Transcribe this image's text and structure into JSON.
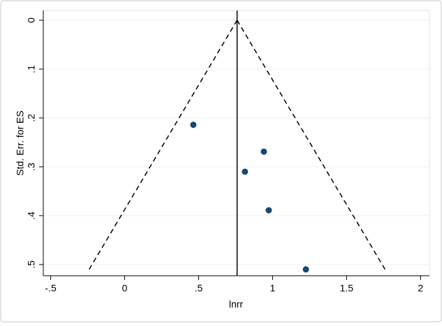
{
  "chart_data": {
    "type": "funnel",
    "x_label": "lnrr",
    "y_label": "Std. Err. for ES",
    "xlim": [
      -0.55,
      2.06
    ],
    "ylim": [
      -0.02,
      0.523
    ],
    "y_inverted": true,
    "xticks": [
      {
        "value": -0.5,
        "label": "-.5"
      },
      0,
      {
        "value": 0.5,
        "label": ".5"
      },
      1,
      1.5,
      2
    ],
    "yticks": [
      0,
      {
        "value": 0.1,
        "label": ".1"
      },
      {
        "value": 0.2,
        "label": ".2"
      },
      {
        "value": 0.3,
        "label": ".3"
      },
      {
        "value": 0.4,
        "label": ".4"
      },
      {
        "value": 0.5,
        "label": ".5"
      }
    ],
    "grid": true,
    "points": {
      "color": "#1a476f",
      "x": [
        0.464,
        0.941,
        0.813,
        0.974,
        1.225
      ],
      "y": [
        0.214,
        0.269,
        0.31,
        0.389,
        0.51
      ]
    },
    "ref_x": 0.76,
    "funnel_lower": {
      "x": [
        0.76,
        -0.24
      ],
      "y": [
        0,
        0.51
      ]
    },
    "funnel_upper": {
      "x": [
        0.76,
        1.76
      ],
      "y": [
        0,
        0.51
      ]
    }
  }
}
